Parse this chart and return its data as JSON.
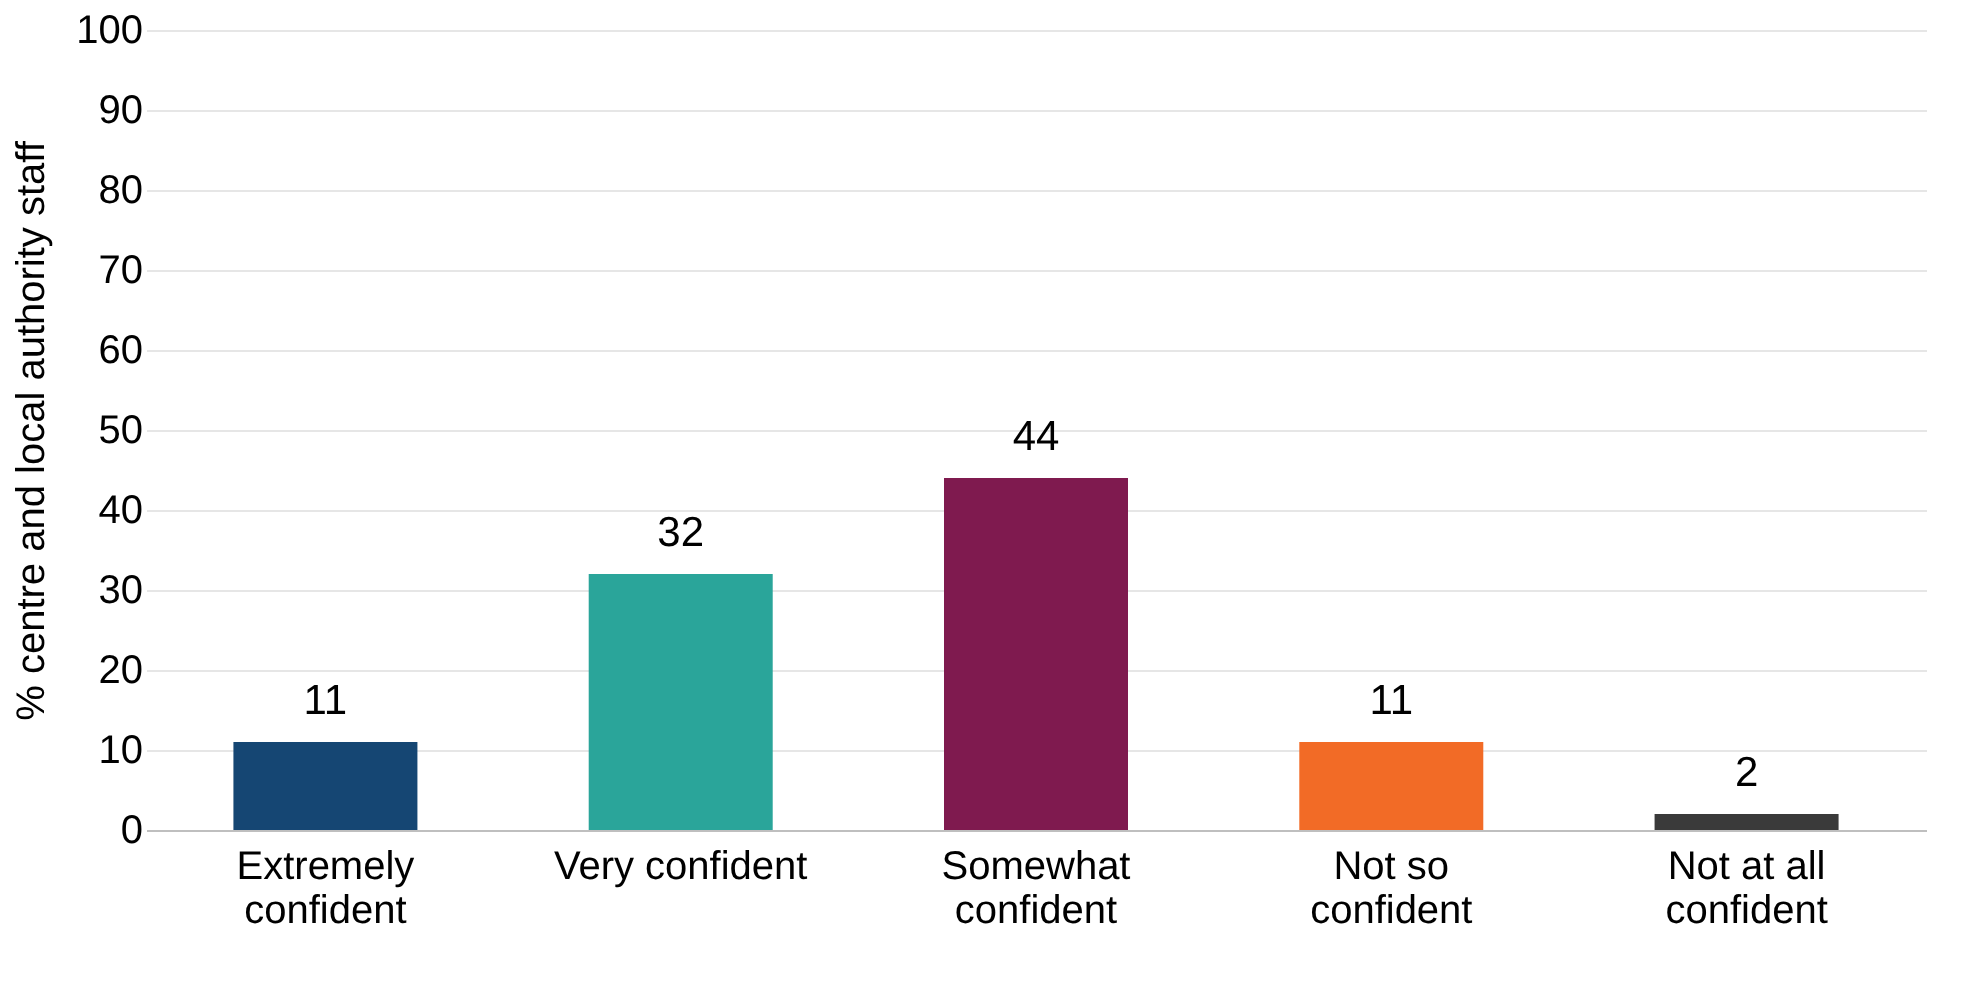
{
  "chart_data": {
    "type": "bar",
    "ylabel": "% centre and local authority staff",
    "categories": [
      "Extremely confident",
      "Very confident",
      "Somewhat confident",
      "Not so confident",
      "Not at all confident"
    ],
    "values": [
      11,
      32,
      44,
      11,
      2
    ],
    "colors": [
      "#154673",
      "#2aa59a",
      "#7f1a4f",
      "#f26b26",
      "#3a3a3a"
    ],
    "ylim": [
      0,
      100
    ],
    "yticks": [
      0,
      10,
      20,
      30,
      40,
      50,
      60,
      70,
      80,
      90,
      100
    ],
    "grid": "y",
    "data_labels": true
  }
}
